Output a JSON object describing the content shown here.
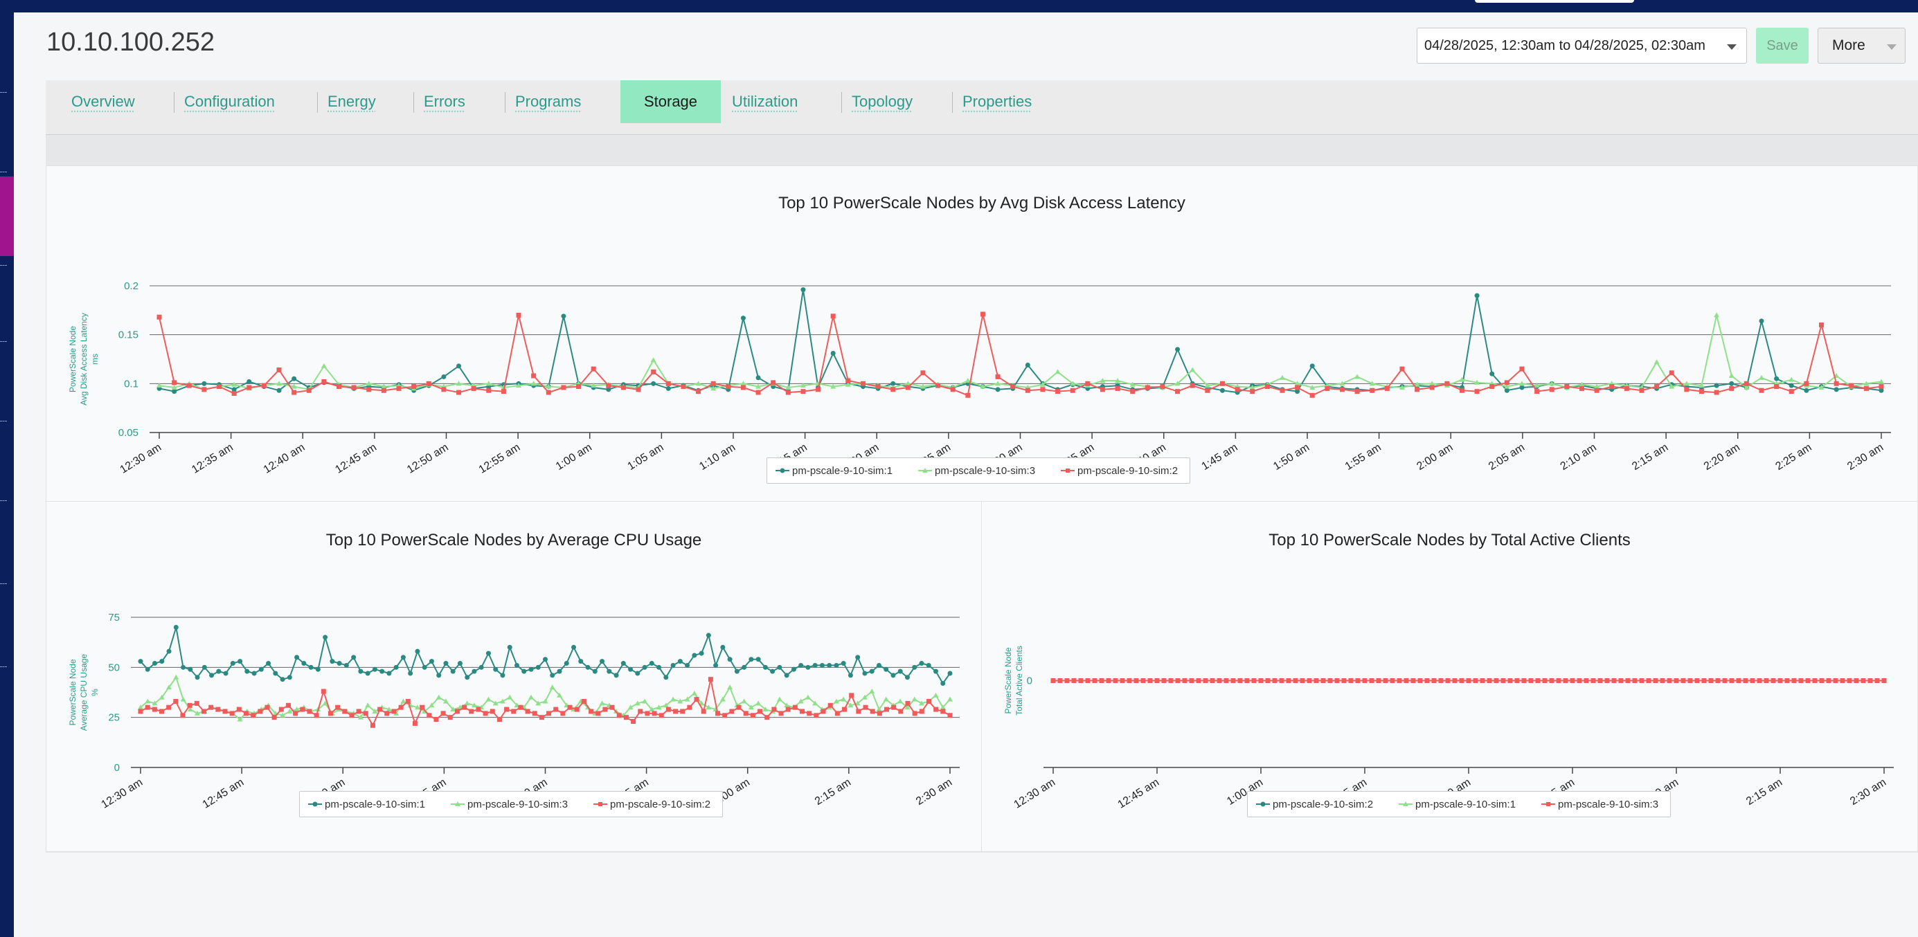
{
  "page": {
    "title": "10.10.100.252",
    "date_range": "04/28/2025, 12:30am to 04/28/2025, 02:30am",
    "save_label": "Save",
    "more_label": "More"
  },
  "tabs": [
    {
      "label": "Overview",
      "active": false
    },
    {
      "label": "Configuration",
      "active": false
    },
    {
      "label": "Energy",
      "active": false
    },
    {
      "label": "Errors",
      "active": false
    },
    {
      "label": "Programs",
      "active": false
    },
    {
      "label": "Storage",
      "active": true
    },
    {
      "label": "Utilization",
      "active": false
    },
    {
      "label": "Topology",
      "active": false
    },
    {
      "label": "Properties",
      "active": false
    }
  ],
  "colors": {
    "accent": "#2a9a8a",
    "active_tab": "#92e8c1",
    "save_button": "#a6efc9",
    "nav_dark": "#0b1f5c",
    "nav_highlight": "#a0158e"
  },
  "icons": [
    "chevron-down-icon"
  ],
  "chart_data": [
    {
      "type": "line",
      "title": "Top 10 PowerScale Nodes by Avg Disk Access Latency",
      "ylabel": "PowerScale Node Avg Disk Access Latency ms",
      "ylabel_lines": [
        "PowerScale Node",
        "Avg Disk Access Latency",
        "ms"
      ],
      "yticks": [
        "0.2",
        "0.15",
        "0.1",
        "0.05"
      ],
      "ylim": [
        0.05,
        0.2
      ],
      "xticks": [
        "12:30 am",
        "12:35 am",
        "12:40 am",
        "12:45 am",
        "12:50 am",
        "12:55 am",
        "1:00 am",
        "1:05 am",
        "1:10 am",
        "1:15 am",
        "1:20 am",
        "1:25 am",
        "1:30 am",
        "1:35 am",
        "1:40 am",
        "1:45 am",
        "1:50 am",
        "1:55 am",
        "2:00 am",
        "2:05 am",
        "2:10 am",
        "2:15 am",
        "2:20 am",
        "2:25 am",
        "2:30 am"
      ],
      "x_range": [
        "12:30 am",
        "2:30 am"
      ],
      "grid": true,
      "legend_position": "bottom-center",
      "series": [
        {
          "name": "pm-pscale-9-10-sim:1",
          "color": "#2a8a82",
          "marker": "circle",
          "values": [
            0.095,
            0.092,
            0.098,
            0.1,
            0.099,
            0.094,
            0.102,
            0.097,
            0.093,
            0.105,
            0.096,
            0.101,
            0.098,
            0.095,
            0.097,
            0.096,
            0.099,
            0.093,
            0.098,
            0.107,
            0.118,
            0.095,
            0.097,
            0.099,
            0.1,
            0.098,
            0.097,
            0.169,
            0.1,
            0.096,
            0.094,
            0.099,
            0.098,
            0.1,
            0.095,
            0.098,
            0.093,
            0.098,
            0.094,
            0.167,
            0.106,
            0.097,
            0.093,
            0.196,
            0.096,
            0.131,
            0.1,
            0.097,
            0.095,
            0.1,
            0.097,
            0.095,
            0.098,
            0.096,
            0.1,
            0.097,
            0.094,
            0.095,
            0.119,
            0.1,
            0.094,
            0.099,
            0.095,
            0.097,
            0.098,
            0.094,
            0.095,
            0.096,
            0.135,
            0.1,
            0.096,
            0.093,
            0.091,
            0.098,
            0.099,
            0.094,
            0.092,
            0.118,
            0.097,
            0.095,
            0.094,
            0.093,
            0.096,
            0.097,
            0.098,
            0.097,
            0.099,
            0.096,
            0.19,
            0.11,
            0.093,
            0.096,
            0.097,
            0.1,
            0.096,
            0.098,
            0.095,
            0.094,
            0.098,
            0.097,
            0.095,
            0.099,
            0.097,
            0.096,
            0.098,
            0.1,
            0.096,
            0.164,
            0.105,
            0.098,
            0.093,
            0.097,
            0.094,
            0.096,
            0.095,
            0.093
          ]
        },
        {
          "name": "pm-pscale-9-10-sim:3",
          "color": "#8fe08a",
          "marker": "triangle",
          "values": [
            0.098,
            0.096,
            0.1,
            0.094,
            0.097,
            0.099,
            0.095,
            0.098,
            0.1,
            0.097,
            0.094,
            0.118,
            0.099,
            0.096,
            0.1,
            0.097,
            0.098,
            0.095,
            0.099,
            0.097,
            0.1,
            0.098,
            0.1,
            0.096,
            0.098,
            0.1,
            0.097,
            0.096,
            0.1,
            0.098,
            0.099,
            0.097,
            0.096,
            0.124,
            0.1,
            0.097,
            0.1,
            0.095,
            0.098,
            0.1,
            0.097,
            0.1,
            0.096,
            0.098,
            0.1,
            0.097,
            0.099,
            0.1,
            0.098,
            0.096,
            0.1,
            0.097,
            0.099,
            0.096,
            0.103,
            0.097,
            0.1,
            0.098,
            0.096,
            0.099,
            0.112,
            0.1,
            0.098,
            0.103,
            0.103,
            0.099,
            0.097,
            0.096,
            0.1,
            0.114,
            0.098,
            0.1,
            0.097,
            0.096,
            0.099,
            0.106,
            0.1,
            0.096,
            0.098,
            0.1,
            0.107,
            0.1,
            0.097,
            0.096,
            0.099,
            0.1,
            0.098,
            0.104,
            0.101,
            0.1,
            0.097,
            0.1,
            0.098,
            0.1,
            0.096,
            0.099,
            0.097,
            0.1,
            0.098,
            0.096,
            0.122,
            0.097,
            0.1,
            0.098,
            0.17,
            0.108,
            0.096,
            0.106,
            0.1,
            0.104,
            0.098,
            0.096,
            0.108,
            0.097,
            0.1,
            0.102
          ]
        },
        {
          "name": "pm-pscale-9-10-sim:2",
          "color": "#ef5b5b",
          "marker": "square",
          "values": [
            0.168,
            0.101,
            0.098,
            0.094,
            0.097,
            0.09,
            0.096,
            0.098,
            0.114,
            0.091,
            0.093,
            0.102,
            0.097,
            0.096,
            0.094,
            0.093,
            0.095,
            0.097,
            0.1,
            0.094,
            0.091,
            0.095,
            0.093,
            0.092,
            0.17,
            0.108,
            0.091,
            0.096,
            0.097,
            0.115,
            0.098,
            0.096,
            0.094,
            0.112,
            0.1,
            0.097,
            0.092,
            0.1,
            0.097,
            0.096,
            0.091,
            0.101,
            0.091,
            0.092,
            0.094,
            0.169,
            0.103,
            0.1,
            0.097,
            0.094,
            0.096,
            0.111,
            0.098,
            0.094,
            0.088,
            0.171,
            0.107,
            0.097,
            0.093,
            0.094,
            0.092,
            0.093,
            0.1,
            0.094,
            0.095,
            0.092,
            0.096,
            0.097,
            0.092,
            0.098,
            0.093,
            0.1,
            0.094,
            0.092,
            0.097,
            0.093,
            0.096,
            0.088,
            0.095,
            0.094,
            0.092,
            0.093,
            0.095,
            0.115,
            0.094,
            0.096,
            0.1,
            0.093,
            0.092,
            0.097,
            0.101,
            0.115,
            0.092,
            0.094,
            0.097,
            0.095,
            0.093,
            0.097,
            0.095,
            0.093,
            0.097,
            0.111,
            0.094,
            0.092,
            0.091,
            0.095,
            0.1,
            0.093,
            0.097,
            0.092,
            0.1,
            0.16,
            0.1,
            0.098,
            0.095,
            0.097
          ]
        }
      ]
    },
    {
      "type": "line",
      "title": "Top 10 PowerScale Nodes by Average CPU Usage",
      "ylabel": "PowerScale Node Average CPU Usage %",
      "ylabel_lines": [
        "PowerScale Node",
        "Average CPU Usage",
        "%"
      ],
      "yticks": [
        "75",
        "50",
        "25",
        "0"
      ],
      "ylim": [
        0,
        75
      ],
      "xticks": [
        "12:30 am",
        "12:45 am",
        "1:00 am",
        "1:15 am",
        "1:30 am",
        "1:45 am",
        "2:00 am",
        "2:15 am",
        "2:30 am"
      ],
      "x_range": [
        "12:30 am",
        "2:30 am"
      ],
      "grid": true,
      "legend_position": "bottom-center",
      "series": [
        {
          "name": "pm-pscale-9-10-sim:1",
          "color": "#2a8a82",
          "marker": "circle",
          "values": [
            53,
            49,
            52,
            53,
            58,
            70,
            50,
            49,
            45,
            50,
            46,
            48,
            47,
            52,
            53,
            48,
            47,
            49,
            52,
            47,
            44,
            45,
            55,
            52,
            50,
            49,
            65,
            53,
            52,
            51,
            55,
            48,
            47,
            49,
            48,
            47,
            50,
            55,
            47,
            58,
            50,
            53,
            46,
            52,
            48,
            52,
            45,
            48,
            50,
            57,
            49,
            46,
            60,
            51,
            48,
            49,
            50,
            54,
            46,
            48,
            52,
            60,
            53,
            50,
            48,
            53,
            48,
            46,
            52,
            49,
            47,
            50,
            52,
            50,
            45,
            51,
            53,
            51,
            56,
            57,
            66,
            51,
            60,
            54,
            48,
            50,
            54,
            54,
            50,
            48,
            50,
            46,
            49,
            51,
            50,
            51,
            51,
            51,
            51,
            52,
            46,
            55,
            47,
            48,
            51,
            49,
            46,
            48,
            45,
            50,
            52,
            51,
            48,
            42,
            47
          ]
        },
        {
          "name": "pm-pscale-9-10-sim:3",
          "color": "#8fe08a",
          "marker": "triangle",
          "values": [
            30,
            33,
            32,
            35,
            40,
            45,
            34,
            29,
            27,
            28,
            30,
            29,
            28,
            27,
            24,
            28,
            27,
            29,
            31,
            27,
            26,
            28,
            29,
            30,
            28,
            29,
            32,
            27,
            29,
            28,
            27,
            25,
            31,
            28,
            30,
            29,
            27,
            33,
            31,
            30,
            28,
            31,
            35,
            33,
            29,
            30,
            32,
            31,
            30,
            34,
            32,
            33,
            35,
            31,
            30,
            35,
            32,
            33,
            40,
            36,
            31,
            29,
            33,
            30,
            27,
            32,
            31,
            28,
            26,
            30,
            32,
            33,
            29,
            30,
            31,
            34,
            33,
            34,
            37,
            32,
            30,
            29,
            34,
            40,
            31,
            33,
            30,
            32,
            29,
            28,
            34,
            31,
            30,
            33,
            35,
            32,
            29,
            30,
            33,
            34,
            31,
            32,
            35,
            38,
            29,
            34,
            31,
            33,
            30,
            34,
            32,
            33,
            36,
            30,
            34
          ]
        },
        {
          "name": "pm-pscale-9-10-sim:2",
          "color": "#ef5b5b",
          "marker": "square",
          "values": [
            28,
            30,
            29,
            28,
            30,
            33,
            26,
            31,
            32,
            28,
            30,
            29,
            28,
            27,
            29,
            27,
            26,
            28,
            30,
            25,
            29,
            31,
            27,
            29,
            28,
            26,
            38,
            27,
            30,
            28,
            26,
            28,
            27,
            21,
            29,
            27,
            28,
            30,
            33,
            22,
            30,
            26,
            24,
            27,
            25,
            28,
            30,
            28,
            29,
            27,
            28,
            24,
            29,
            28,
            30,
            28,
            27,
            25,
            27,
            29,
            27,
            30,
            29,
            33,
            28,
            27,
            29,
            30,
            26,
            25,
            23,
            28,
            27,
            27,
            26,
            29,
            28,
            28,
            30,
            34,
            28,
            44,
            27,
            26,
            28,
            30,
            27,
            26,
            28,
            25,
            29,
            27,
            29,
            30,
            28,
            27,
            26,
            28,
            31,
            27,
            29,
            36,
            28,
            30,
            28,
            27,
            29,
            30,
            28,
            32,
            27,
            28,
            33,
            29,
            28,
            26
          ]
        }
      ]
    },
    {
      "type": "line",
      "title": "Top 10 PowerScale Nodes by Total Active Clients",
      "ylabel": "PowerScale Node Total Active Clients",
      "ylabel_lines": [
        "PowerScale Node",
        "Total Active Clients"
      ],
      "yticks": [
        "0"
      ],
      "ylim": [
        -1,
        1
      ],
      "xticks": [
        "12:30 am",
        "12:45 am",
        "1:00 am",
        "1:15 am",
        "1:30 am",
        "1:45 am",
        "2:00 am",
        "2:15 am",
        "2:30 am"
      ],
      "x_range": [
        "12:30 am",
        "2:30 am"
      ],
      "grid": false,
      "legend_position": "bottom-center",
      "series": [
        {
          "name": "pm-pscale-9-10-sim:2",
          "color": "#2a8a82",
          "marker": "circle",
          "constant_value": 0
        },
        {
          "name": "pm-pscale-9-10-sim:1",
          "color": "#8fe08a",
          "marker": "triangle",
          "constant_value": 0
        },
        {
          "name": "pm-pscale-9-10-sim:3",
          "color": "#ef5b5b",
          "marker": "square",
          "constant_value": 0
        }
      ]
    }
  ]
}
